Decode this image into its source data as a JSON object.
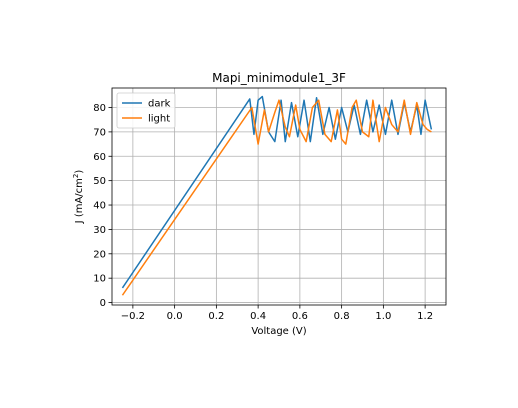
{
  "chart_data": {
    "type": "line",
    "title": "Mapi_minimodule1_3F",
    "xlabel": "Voltage (V)",
    "ylabel_main": "J (mA/cm",
    "ylabel_sup": "2",
    "ylabel_tail": ")",
    "xlim": [
      -0.3,
      1.3
    ],
    "ylim": [
      -1,
      88
    ],
    "xticks": [
      -0.2,
      0.0,
      0.2,
      0.4,
      0.6,
      0.8,
      1.0,
      1.2
    ],
    "xtick_labels": [
      "−0.2",
      "0.0",
      "0.2",
      "0.4",
      "0.6",
      "0.8",
      "1.0",
      "1.2"
    ],
    "yticks": [
      0,
      10,
      20,
      30,
      40,
      50,
      60,
      70,
      80
    ],
    "ytick_labels": [
      "0",
      "10",
      "20",
      "30",
      "40",
      "50",
      "60",
      "70",
      "80"
    ],
    "grid": true,
    "legend_position": "top-left",
    "series": [
      {
        "name": "dark",
        "color": "#1f77b4",
        "points": [
          [
            -0.25,
            6
          ],
          [
            0.36,
            83.5
          ],
          [
            0.38,
            69
          ],
          [
            0.4,
            83
          ],
          [
            0.42,
            84.5
          ],
          [
            0.45,
            70
          ],
          [
            0.48,
            66
          ],
          [
            0.51,
            83
          ],
          [
            0.53,
            66
          ],
          [
            0.56,
            82
          ],
          [
            0.59,
            68
          ],
          [
            0.62,
            83
          ],
          [
            0.65,
            66
          ],
          [
            0.68,
            84
          ],
          [
            0.71,
            69
          ],
          [
            0.74,
            80
          ],
          [
            0.77,
            67
          ],
          [
            0.8,
            80
          ],
          [
            0.83,
            70
          ],
          [
            0.86,
            81
          ],
          [
            0.89,
            69
          ],
          [
            0.92,
            83
          ],
          [
            0.95,
            70
          ],
          [
            0.98,
            81
          ],
          [
            1.01,
            69
          ],
          [
            1.04,
            83
          ],
          [
            1.07,
            69
          ],
          [
            1.1,
            82
          ],
          [
            1.13,
            70
          ],
          [
            1.16,
            81
          ],
          [
            1.18,
            69
          ],
          [
            1.2,
            83
          ],
          [
            1.23,
            71
          ]
        ]
      },
      {
        "name": "light",
        "color": "#ff7f0e",
        "points": [
          [
            -0.25,
            3
          ],
          [
            0.37,
            80
          ],
          [
            0.4,
            65
          ],
          [
            0.43,
            79
          ],
          [
            0.45,
            70
          ],
          [
            0.48,
            78
          ],
          [
            0.5,
            83
          ],
          [
            0.53,
            72
          ],
          [
            0.55,
            68
          ],
          [
            0.58,
            81
          ],
          [
            0.6,
            71
          ],
          [
            0.63,
            66
          ],
          [
            0.66,
            80
          ],
          [
            0.69,
            83
          ],
          [
            0.72,
            69
          ],
          [
            0.75,
            66
          ],
          [
            0.78,
            79
          ],
          [
            0.8,
            67
          ],
          [
            0.82,
            65
          ],
          [
            0.85,
            80
          ],
          [
            0.87,
            83
          ],
          [
            0.9,
            70
          ],
          [
            0.93,
            68
          ],
          [
            0.95,
            83
          ],
          [
            0.98,
            66
          ],
          [
            1.01,
            80
          ],
          [
            1.04,
            73
          ],
          [
            1.07,
            70
          ],
          [
            1.1,
            83
          ],
          [
            1.13,
            69
          ],
          [
            1.16,
            82
          ],
          [
            1.19,
            73
          ],
          [
            1.21,
            71
          ],
          [
            1.23,
            70
          ]
        ]
      }
    ]
  }
}
